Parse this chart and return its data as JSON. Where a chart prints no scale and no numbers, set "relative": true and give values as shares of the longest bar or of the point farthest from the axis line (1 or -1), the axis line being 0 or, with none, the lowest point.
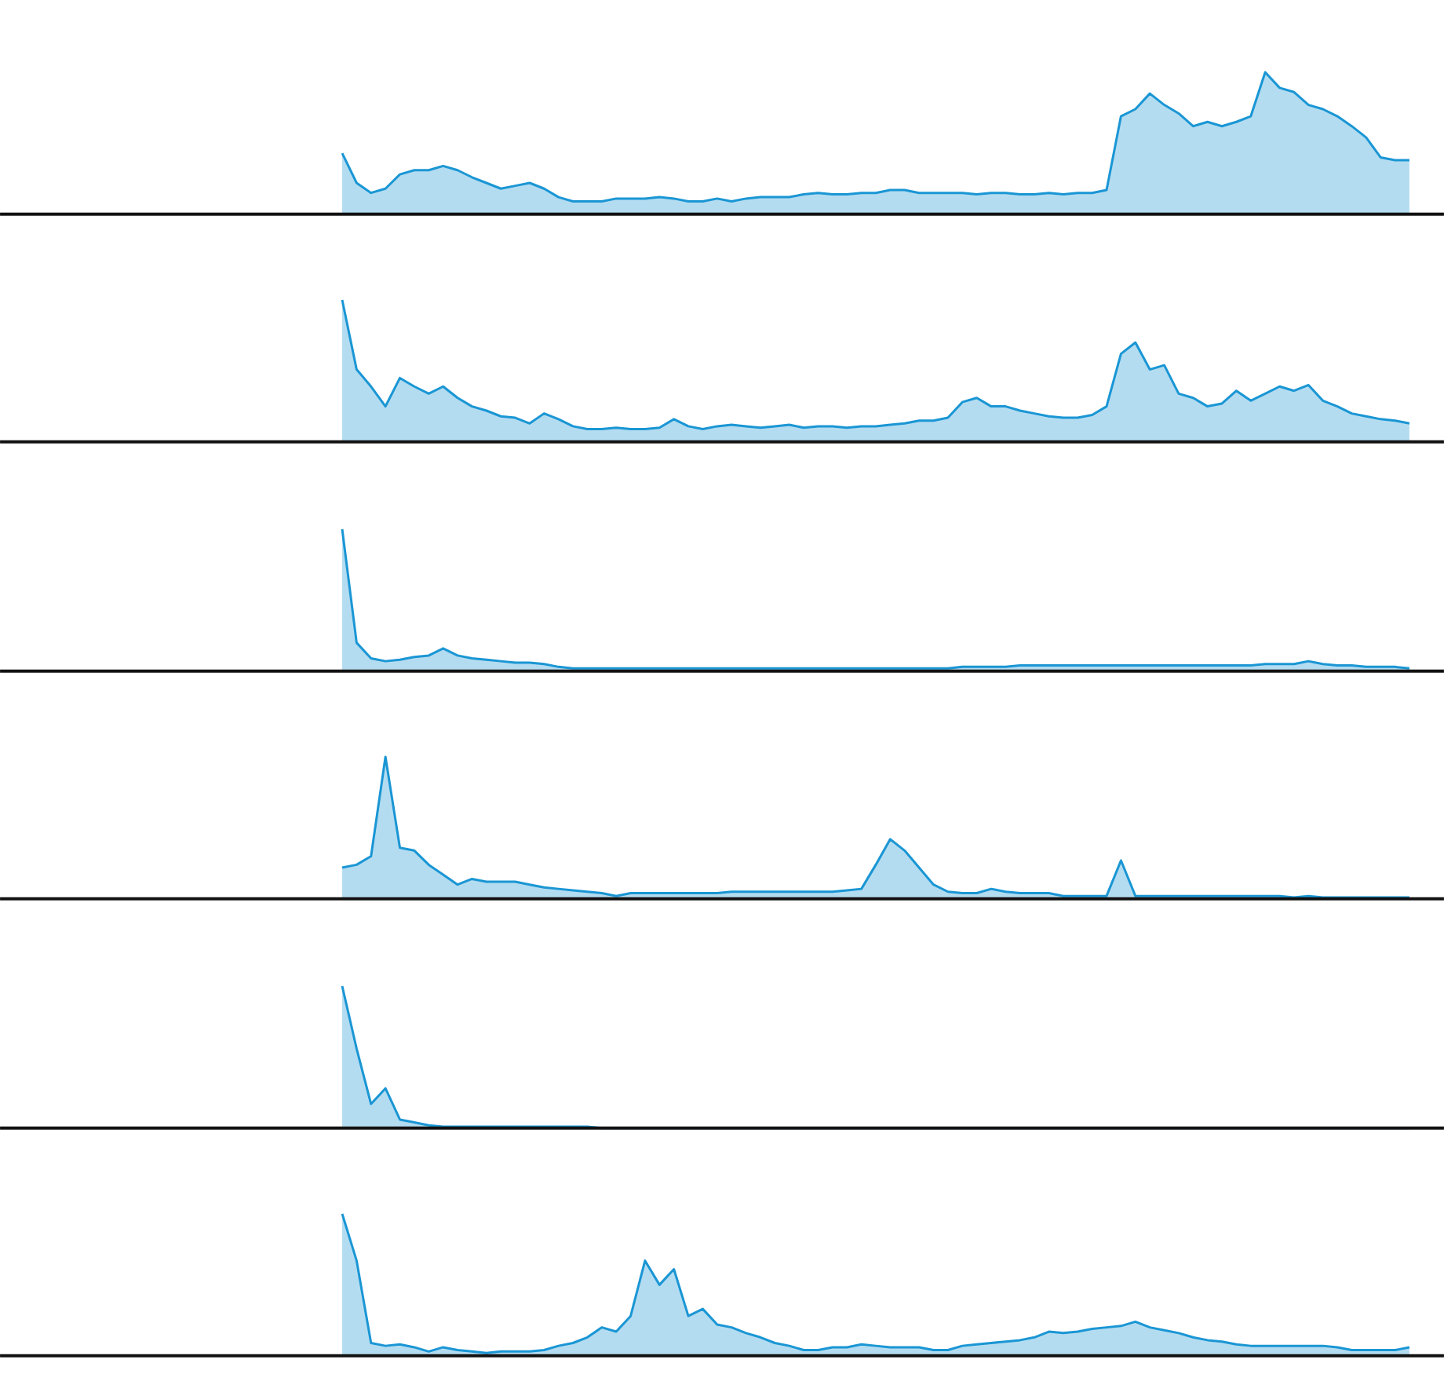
{
  "chart_data": [
    {
      "type": "area",
      "relative": true,
      "tick_labels": false,
      "categories": [
        null,
        null,
        null,
        null,
        null,
        null,
        null,
        null,
        null,
        null,
        null,
        null,
        null,
        null,
        null,
        null,
        null,
        null,
        null,
        null,
        null,
        null,
        null,
        null,
        null,
        null,
        null,
        null,
        null,
        null,
        null,
        null,
        null,
        null,
        null,
        null,
        null,
        null,
        null,
        null,
        null,
        null,
        null,
        null,
        null,
        null,
        null,
        null,
        null,
        null,
        null,
        null,
        null,
        null,
        null,
        null,
        null,
        null,
        null,
        null,
        null,
        null,
        null,
        null,
        null,
        null,
        null,
        null,
        null,
        null,
        null,
        null,
        null,
        null,
        null
      ],
      "series": [
        {
          "color": "#1a96d4",
          "values": [
            0.43,
            0.22,
            0.15,
            0.18,
            0.28,
            0.31,
            0.31,
            0.34,
            0.31,
            0.26,
            0.22,
            0.18,
            0.2,
            0.22,
            0.18,
            0.12,
            0.09,
            0.09,
            0.09,
            0.11,
            0.11,
            0.11,
            0.12,
            0.11,
            0.09,
            0.09,
            0.11,
            0.09,
            0.11,
            0.12,
            0.12,
            0.12,
            0.14,
            0.15,
            0.14,
            0.14,
            0.15,
            0.15,
            0.17,
            0.17,
            0.15,
            0.15,
            0.15,
            0.15,
            0.14,
            0.15,
            0.15,
            0.14,
            0.14,
            0.15,
            0.14,
            0.15,
            0.15,
            0.17,
            0.69,
            0.74,
            0.85,
            0.77,
            0.71,
            0.62,
            0.65,
            0.62,
            0.65,
            0.69,
            1,
            0.89,
            0.86,
            0.77,
            0.74,
            0.69,
            0.62,
            0.54,
            0.4,
            0.38,
            0.38
          ]
        }
      ]
    },
    {
      "type": "area",
      "relative": true,
      "tick_labels": false,
      "categories": [
        null,
        null,
        null,
        null,
        null,
        null,
        null,
        null,
        null,
        null,
        null,
        null,
        null,
        null,
        null,
        null,
        null,
        null,
        null,
        null,
        null,
        null,
        null,
        null,
        null,
        null,
        null,
        null,
        null,
        null,
        null,
        null,
        null,
        null,
        null,
        null,
        null,
        null,
        null,
        null,
        null,
        null,
        null,
        null,
        null,
        null,
        null,
        null,
        null,
        null,
        null,
        null,
        null,
        null,
        null,
        null,
        null,
        null,
        null,
        null,
        null,
        null,
        null,
        null,
        null,
        null,
        null,
        null,
        null,
        null,
        null,
        null,
        null,
        null,
        null
      ],
      "series": [
        {
          "color": "#1a96d4",
          "values": [
            1,
            0.51,
            0.39,
            0.25,
            0.45,
            0.39,
            0.34,
            0.39,
            0.31,
            0.25,
            0.22,
            0.18,
            0.17,
            0.13,
            0.2,
            0.16,
            0.11,
            0.09,
            0.09,
            0.1,
            0.09,
            0.09,
            0.1,
            0.16,
            0.11,
            0.09,
            0.11,
            0.12,
            0.11,
            0.1,
            0.11,
            0.12,
            0.1,
            0.11,
            0.11,
            0.1,
            0.11,
            0.11,
            0.12,
            0.13,
            0.15,
            0.15,
            0.17,
            0.28,
            0.31,
            0.25,
            0.25,
            0.22,
            0.2,
            0.18,
            0.17,
            0.17,
            0.19,
            0.25,
            0.62,
            0.7,
            0.51,
            0.54,
            0.34,
            0.31,
            0.25,
            0.27,
            0.36,
            0.29,
            0.34,
            0.39,
            0.36,
            0.4,
            0.29,
            0.25,
            0.2,
            0.18,
            0.16,
            0.15,
            0.13
          ]
        }
      ]
    },
    {
      "type": "area",
      "relative": true,
      "tick_labels": false,
      "categories": [
        null,
        null,
        null,
        null,
        null,
        null,
        null,
        null,
        null,
        null,
        null,
        null,
        null,
        null,
        null,
        null,
        null,
        null,
        null,
        null,
        null,
        null,
        null,
        null,
        null,
        null,
        null,
        null,
        null,
        null,
        null,
        null,
        null,
        null,
        null,
        null,
        null,
        null,
        null,
        null,
        null,
        null,
        null,
        null,
        null,
        null,
        null,
        null,
        null,
        null,
        null,
        null,
        null,
        null,
        null,
        null,
        null,
        null,
        null,
        null,
        null,
        null,
        null,
        null,
        null,
        null,
        null,
        null,
        null,
        null,
        null,
        null,
        null,
        null,
        null
      ],
      "series": [
        {
          "color": "#1a96d4",
          "values": [
            1,
            0.2,
            0.09,
            0.07,
            0.08,
            0.1,
            0.11,
            0.16,
            0.11,
            0.09,
            0.08,
            0.07,
            0.06,
            0.06,
            0.05,
            0.03,
            0.02,
            0.02,
            0.02,
            0.02,
            0.02,
            0.02,
            0.02,
            0.02,
            0.02,
            0.02,
            0.02,
            0.02,
            0.02,
            0.02,
            0.02,
            0.02,
            0.02,
            0.02,
            0.02,
            0.02,
            0.02,
            0.02,
            0.02,
            0.02,
            0.02,
            0.02,
            0.02,
            0.03,
            0.03,
            0.03,
            0.03,
            0.04,
            0.04,
            0.04,
            0.04,
            0.04,
            0.04,
            0.04,
            0.04,
            0.04,
            0.04,
            0.04,
            0.04,
            0.04,
            0.04,
            0.04,
            0.04,
            0.04,
            0.05,
            0.05,
            0.05,
            0.07,
            0.05,
            0.04,
            0.04,
            0.03,
            0.03,
            0.03,
            0.02
          ]
        }
      ]
    },
    {
      "type": "area",
      "relative": true,
      "tick_labels": false,
      "categories": [
        null,
        null,
        null,
        null,
        null,
        null,
        null,
        null,
        null,
        null,
        null,
        null,
        null,
        null,
        null,
        null,
        null,
        null,
        null,
        null,
        null,
        null,
        null,
        null,
        null,
        null,
        null,
        null,
        null,
        null,
        null,
        null,
        null,
        null,
        null,
        null,
        null,
        null,
        null,
        null,
        null,
        null,
        null,
        null,
        null,
        null,
        null,
        null,
        null,
        null,
        null,
        null,
        null,
        null,
        null,
        null,
        null,
        null,
        null,
        null,
        null,
        null,
        null,
        null,
        null,
        null,
        null,
        null,
        null,
        null,
        null,
        null,
        null,
        null,
        null
      ],
      "series": [
        {
          "color": "#1a96d4",
          "values": [
            0.22,
            0.24,
            0.3,
            1,
            0.36,
            0.34,
            0.24,
            0.17,
            0.1,
            0.14,
            0.12,
            0.12,
            0.12,
            0.1,
            0.08,
            0.07,
            0.06,
            0.05,
            0.04,
            0.02,
            0.04,
            0.04,
            0.04,
            0.04,
            0.04,
            0.04,
            0.04,
            0.05,
            0.05,
            0.05,
            0.05,
            0.05,
            0.05,
            0.05,
            0.05,
            0.06,
            0.07,
            0.24,
            0.42,
            0.34,
            0.22,
            0.1,
            0.05,
            0.04,
            0.04,
            0.07,
            0.05,
            0.04,
            0.04,
            0.04,
            0.02,
            0.02,
            0.02,
            0.02,
            0.27,
            0.02,
            0.02,
            0.02,
            0.02,
            0.02,
            0.02,
            0.02,
            0.02,
            0.02,
            0.02,
            0.02,
            0.01,
            0.02,
            0.01,
            0.01,
            0.01,
            0.01,
            0.01,
            0.01,
            0.01
          ]
        }
      ]
    },
    {
      "type": "area",
      "relative": true,
      "tick_labels": false,
      "categories": [
        null,
        null,
        null,
        null,
        null,
        null,
        null,
        null,
        null,
        null,
        null,
        null,
        null,
        null,
        null,
        null,
        null,
        null,
        null,
        null,
        null,
        null,
        null,
        null,
        null,
        null,
        null,
        null,
        null,
        null,
        null,
        null,
        null,
        null,
        null,
        null,
        null,
        null,
        null,
        null,
        null,
        null,
        null,
        null,
        null,
        null,
        null,
        null,
        null,
        null,
        null,
        null,
        null,
        null,
        null,
        null,
        null,
        null,
        null,
        null,
        null,
        null,
        null,
        null,
        null,
        null,
        null,
        null,
        null,
        null,
        null,
        null,
        null,
        null,
        null
      ],
      "series": [
        {
          "color": "#1a96d4",
          "values": [
            1,
            0.56,
            0.17,
            0.28,
            0.06,
            0.04,
            0.02,
            0.01,
            0.01,
            0.01,
            0.01,
            0.01,
            0.01,
            0.01,
            0.01,
            0.01,
            0.01,
            0.01,
            0,
            0,
            0,
            0,
            0,
            0,
            0,
            0,
            0,
            0,
            0,
            0,
            0,
            0,
            0,
            0,
            0,
            0,
            0,
            0,
            0,
            0,
            0,
            0,
            0,
            0,
            0,
            0,
            0,
            0,
            0,
            0,
            0,
            0,
            0,
            0,
            0,
            0,
            0,
            0,
            0,
            0,
            0,
            0,
            0,
            0,
            0,
            0,
            0,
            0,
            0,
            0,
            0,
            0,
            0,
            0,
            0
          ]
        }
      ]
    },
    {
      "type": "area",
      "relative": true,
      "tick_labels": false,
      "categories": [
        null,
        null,
        null,
        null,
        null,
        null,
        null,
        null,
        null,
        null,
        null,
        null,
        null,
        null,
        null,
        null,
        null,
        null,
        null,
        null,
        null,
        null,
        null,
        null,
        null,
        null,
        null,
        null,
        null,
        null,
        null,
        null,
        null,
        null,
        null,
        null,
        null,
        null,
        null,
        null,
        null,
        null,
        null,
        null,
        null,
        null,
        null,
        null,
        null,
        null,
        null,
        null,
        null,
        null,
        null,
        null,
        null,
        null,
        null,
        null,
        null,
        null,
        null,
        null,
        null,
        null,
        null,
        null,
        null,
        null,
        null,
        null,
        null,
        null,
        null
      ],
      "series": [
        {
          "color": "#1a96d4",
          "values": [
            1,
            0.67,
            0.09,
            0.07,
            0.08,
            0.06,
            0.03,
            0.06,
            0.04,
            0.03,
            0.02,
            0.03,
            0.03,
            0.03,
            0.04,
            0.07,
            0.09,
            0.13,
            0.2,
            0.17,
            0.28,
            0.67,
            0.5,
            0.61,
            0.28,
            0.33,
            0.22,
            0.2,
            0.16,
            0.13,
            0.09,
            0.07,
            0.04,
            0.04,
            0.06,
            0.06,
            0.08,
            0.07,
            0.06,
            0.06,
            0.06,
            0.04,
            0.04,
            0.07,
            0.08,
            0.09,
            0.1,
            0.11,
            0.13,
            0.17,
            0.16,
            0.17,
            0.19,
            0.2,
            0.21,
            0.24,
            0.2,
            0.18,
            0.16,
            0.13,
            0.11,
            0.1,
            0.08,
            0.07,
            0.07,
            0.07,
            0.07,
            0.07,
            0.07,
            0.06,
            0.04,
            0.04,
            0.04,
            0.04,
            0.06
          ]
        }
      ]
    }
  ]
}
